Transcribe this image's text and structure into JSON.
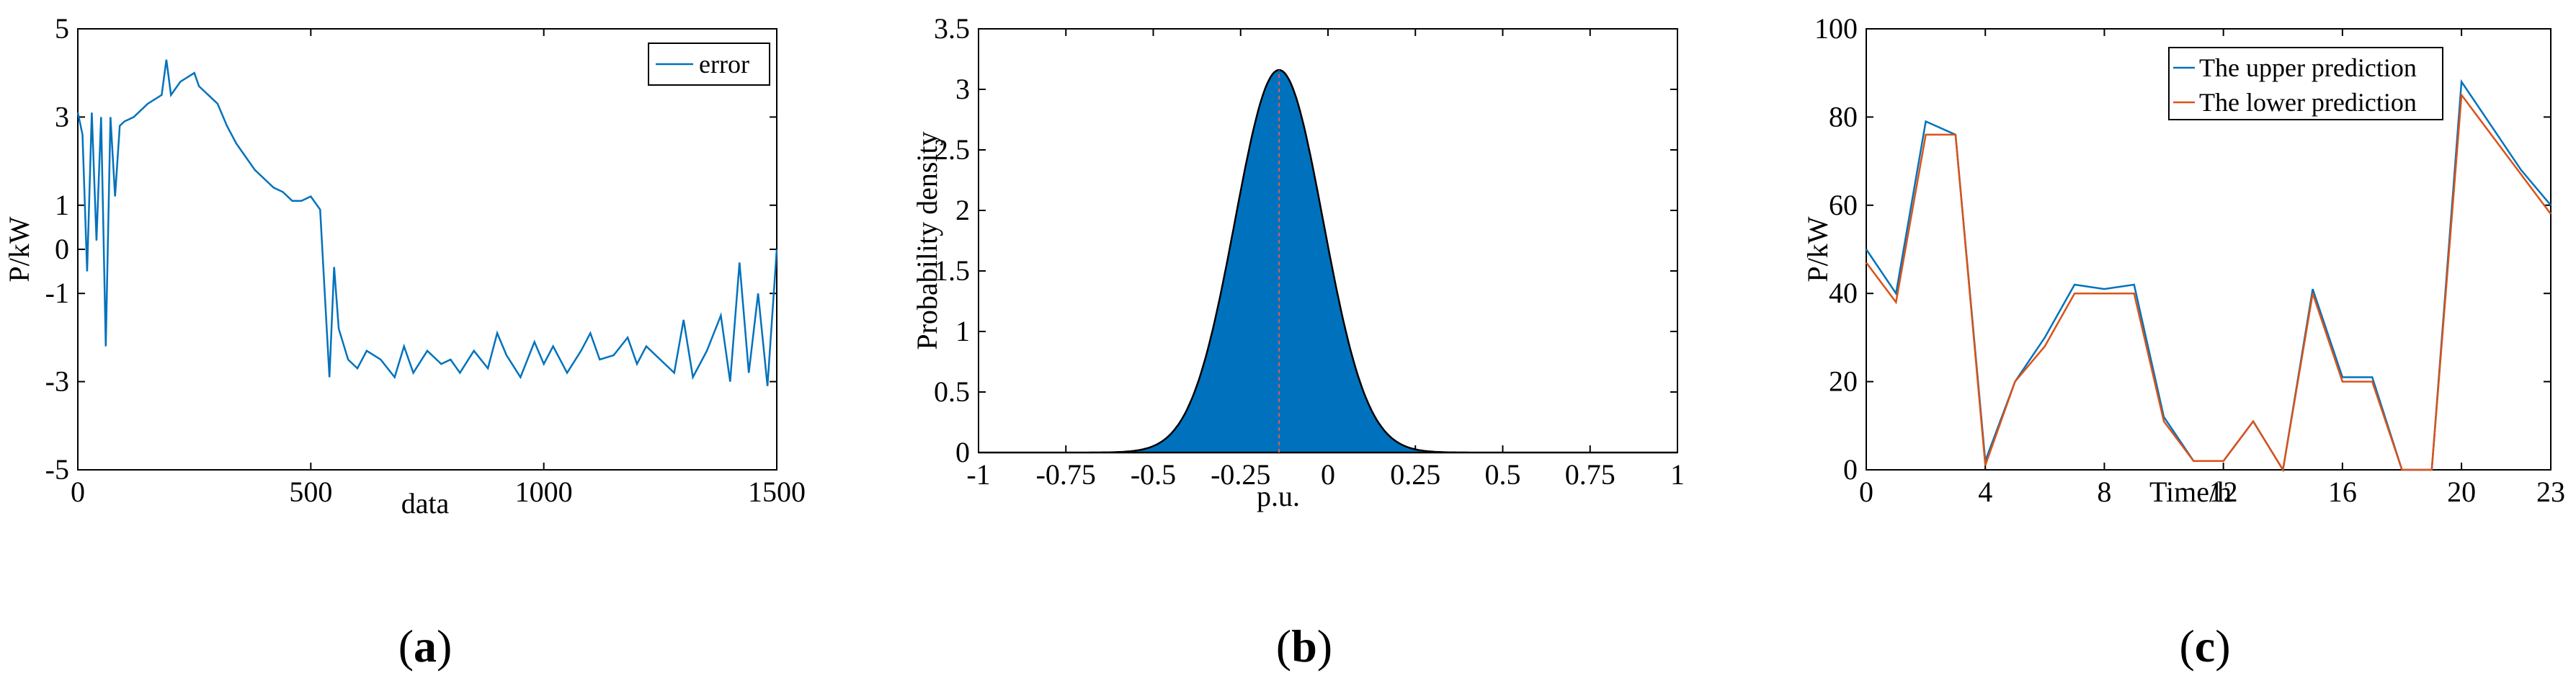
{
  "panels": {
    "a": {
      "label_open": "(",
      "label_letter": "a",
      "label_close": ")"
    },
    "b": {
      "label_open": "(",
      "label_letter": "b",
      "label_close": ")"
    },
    "c": {
      "label_open": "(",
      "label_letter": "c",
      "label_close": ")"
    }
  },
  "colors": {
    "blue": "#0072BD",
    "orange": "#D95319",
    "fill_blue": "#0072BD"
  },
  "chart_data": [
    {
      "type": "line",
      "xlabel": "data",
      "ylabel": "P/kW",
      "xlim": [
        0,
        1500
      ],
      "ylim": [
        -5,
        5
      ],
      "xticks": [
        "0",
        "500",
        "1000",
        "1500"
      ],
      "yticks": [
        "5",
        "3",
        "1",
        "0",
        "-1",
        "-3",
        "-5"
      ],
      "legend": "top-right",
      "series": [
        {
          "name": "error",
          "x": [
            0,
            10,
            20,
            30,
            40,
            50,
            60,
            70,
            80,
            90,
            100,
            120,
            150,
            180,
            190,
            200,
            220,
            250,
            260,
            280,
            300,
            320,
            340,
            360,
            380,
            400,
            420,
            440,
            460,
            480,
            500,
            520,
            530,
            540,
            550,
            560,
            580,
            600,
            620,
            650,
            680,
            700,
            720,
            750,
            780,
            800,
            820,
            850,
            880,
            900,
            920,
            950,
            980,
            1000,
            1020,
            1050,
            1080,
            1100,
            1120,
            1150,
            1180,
            1200,
            1220,
            1250,
            1280,
            1300,
            1320,
            1350,
            1380,
            1400,
            1420,
            1440,
            1460,
            1480,
            1500
          ],
          "y": [
            3.1,
            2.6,
            -0.5,
            3.1,
            0.2,
            3.0,
            -2.2,
            3.0,
            1.2,
            2.8,
            2.9,
            3.0,
            3.3,
            3.5,
            4.3,
            3.5,
            3.8,
            4.0,
            3.7,
            3.5,
            3.3,
            2.8,
            2.4,
            2.1,
            1.8,
            1.6,
            1.4,
            1.3,
            1.1,
            1.1,
            1.2,
            0.9,
            -1.0,
            -2.9,
            -0.4,
            -1.8,
            -2.5,
            -2.7,
            -2.3,
            -2.5,
            -2.9,
            -2.2,
            -2.8,
            -2.3,
            -2.6,
            -2.5,
            -2.8,
            -2.3,
            -2.7,
            -1.9,
            -2.4,
            -2.9,
            -2.1,
            -2.6,
            -2.2,
            -2.8,
            -2.3,
            -1.9,
            -2.5,
            -2.4,
            -2.0,
            -2.6,
            -2.2,
            -2.5,
            -2.8,
            -1.6,
            -2.9,
            -2.3,
            -1.5,
            -3.0,
            -0.3,
            -2.8,
            -1.0,
            -3.1,
            0.0
          ]
        }
      ]
    },
    {
      "type": "area",
      "xlabel": "p.u.",
      "ylabel": "Probability density",
      "xlim": [
        -1,
        1
      ],
      "ylim": [
        0,
        3.5
      ],
      "xticks": [
        "-1",
        "-0.75",
        "-0.5",
        "-0.25",
        "0",
        "0.25",
        "0.5",
        "0.75",
        "1"
      ],
      "yticks": [
        "0",
        "0.5",
        "1",
        "1.5",
        "2",
        "2.5",
        "3",
        "3.5"
      ],
      "series": [
        {
          "mean": -0.14,
          "std": 0.126,
          "peak": 3.16
        }
      ]
    },
    {
      "type": "line",
      "xlabel": "Time/h",
      "ylabel": "P/kW",
      "xlim": [
        0,
        23
      ],
      "ylim": [
        0,
        100
      ],
      "xticks": [
        "0",
        "4",
        "8",
        "12",
        "16",
        "20",
        "23"
      ],
      "yticks": [
        "0",
        "20",
        "40",
        "60",
        "80",
        "100"
      ],
      "legend": "top-right",
      "series": [
        {
          "name": "The upper prediction",
          "x": [
            0,
            1,
            2,
            3,
            4,
            5,
            6,
            7,
            8,
            9,
            10,
            11,
            12,
            13,
            14,
            15,
            16,
            17,
            18,
            19,
            20,
            21,
            22,
            23
          ],
          "y": [
            50,
            40,
            79,
            76,
            2,
            20,
            30,
            42,
            41,
            42,
            12,
            2,
            2,
            11,
            0,
            41,
            21,
            21,
            0,
            0,
            88,
            78,
            68,
            60
          ]
        },
        {
          "name": "The lower prediction",
          "x": [
            0,
            1,
            2,
            3,
            4,
            5,
            6,
            7,
            8,
            9,
            10,
            11,
            12,
            13,
            14,
            15,
            16,
            17,
            18,
            19,
            20,
            21,
            22,
            23
          ],
          "y": [
            47,
            38,
            76,
            76,
            1,
            20,
            28,
            40,
            40,
            40,
            11,
            2,
            2,
            11,
            0,
            40,
            20,
            20,
            0,
            0,
            85,
            76,
            67,
            58
          ]
        }
      ]
    }
  ]
}
